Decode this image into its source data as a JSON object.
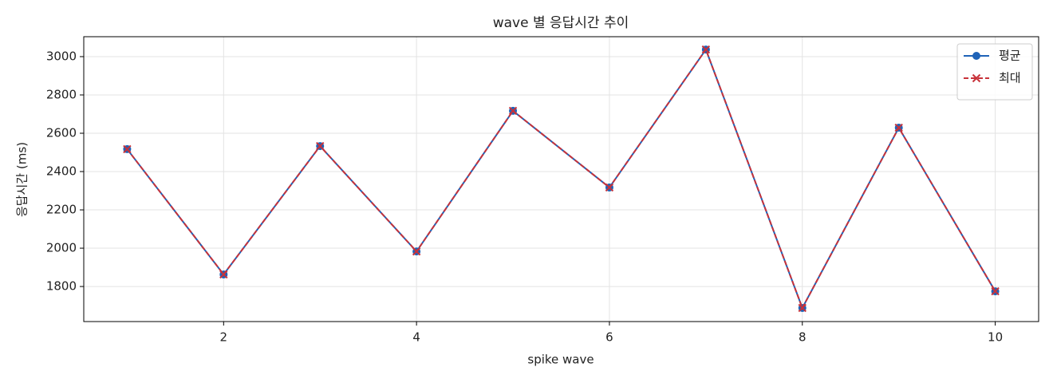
{
  "chart_data": {
    "type": "line",
    "title": "wave 별 응답시간 추이",
    "x_label": "spike wave",
    "y_label": "응답시간 (ms)",
    "x": [
      1,
      2,
      3,
      4,
      5,
      6,
      7,
      8,
      9,
      10
    ],
    "series": [
      {
        "name": "평균",
        "color": "#1f63b8",
        "marker": "circle",
        "dash": false,
        "values": [
          2517,
          1863,
          2533,
          1983,
          2717,
          2317,
          3037,
          1688,
          2629,
          1775
        ]
      },
      {
        "name": "최대",
        "color": "#c8323a",
        "marker": "x",
        "dash": true,
        "values": [
          2517,
          1863,
          2533,
          1983,
          2717,
          2317,
          3037,
          1688,
          2629,
          1775
        ]
      }
    ],
    "xlim": [
      0.55,
      10.45
    ],
    "ylim": [
      1617,
      3104
    ],
    "xticks": [
      2,
      4,
      6,
      8,
      10
    ],
    "yticks": [
      1800,
      2000,
      2200,
      2400,
      2600,
      2800,
      3000
    ],
    "grid": true,
    "legend": "upper right"
  }
}
